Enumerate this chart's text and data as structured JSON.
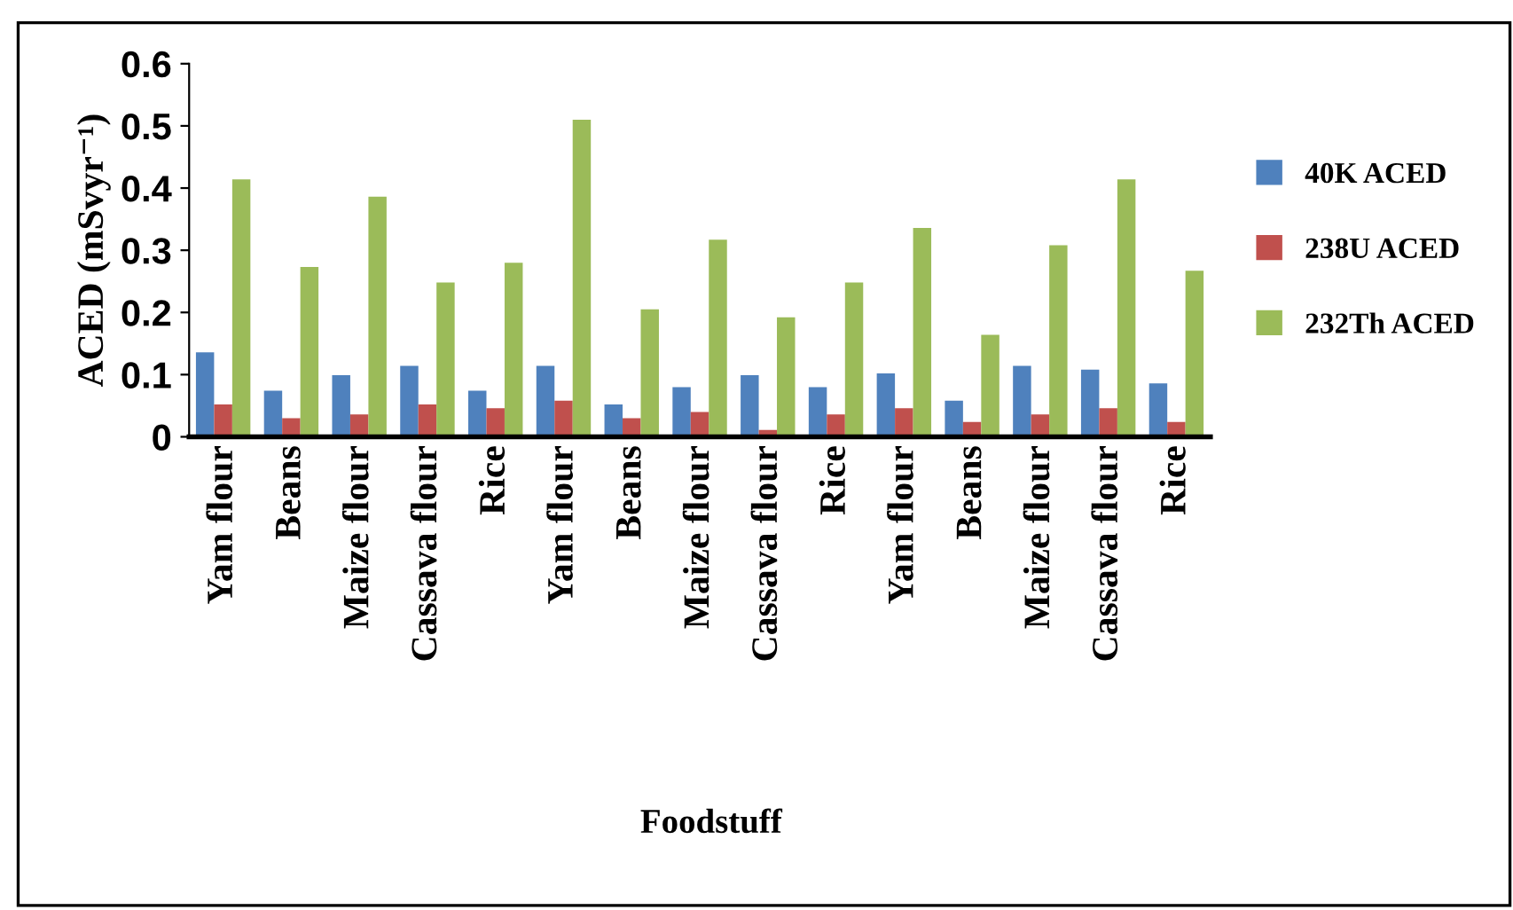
{
  "chart_data": {
    "type": "bar",
    "xlabel": "Foodstuff",
    "ylabel": "ACED (mSvyr⁻¹)",
    "categories": [
      "Yam flour",
      "Beans",
      "Maize flour",
      "Cassava flour",
      "Rice",
      "Yam flour",
      "Beans",
      "Maize flour",
      "Cassava flour",
      "Rice",
      "Yam flour",
      "Beans",
      "Maize flour",
      "Cassava flour",
      "Rice"
    ],
    "series": [
      {
        "name": "40K ACED",
        "color": "#4f81bd",
        "values": [
          0.136,
          0.074,
          0.099,
          0.114,
          0.074,
          0.114,
          0.052,
          0.08,
          0.099,
          0.08,
          0.102,
          0.058,
          0.114,
          0.108,
          0.086
        ]
      },
      {
        "name": "238U ACED",
        "color": "#c0504d",
        "values": [
          0.052,
          0.03,
          0.036,
          0.052,
          0.046,
          0.058,
          0.03,
          0.04,
          0.011,
          0.036,
          0.046,
          0.024,
          0.036,
          0.046,
          0.024
        ]
      },
      {
        "name": "232Th ACED",
        "color": "#9bbb59",
        "values": [
          0.414,
          0.273,
          0.386,
          0.248,
          0.28,
          0.51,
          0.205,
          0.317,
          0.192,
          0.248,
          0.336,
          0.164,
          0.308,
          0.414,
          0.267
        ]
      }
    ],
    "ylim": [
      0,
      0.6
    ],
    "yticks": [
      {
        "value": 0,
        "label": "0"
      },
      0.1,
      0.2,
      0.3,
      0.4,
      0.5,
      0.6
    ],
    "grid": false,
    "legend": "right"
  }
}
